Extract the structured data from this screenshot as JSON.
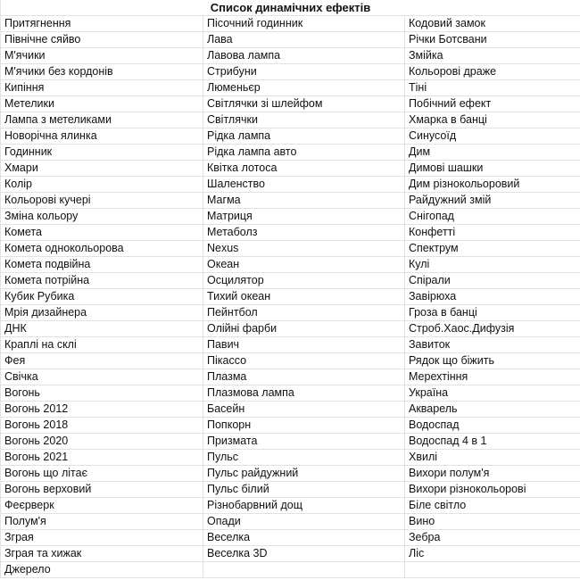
{
  "title": "Список динамічних ефектів",
  "rows": [
    [
      "Притягнення",
      "Пісочний годинник",
      "Кодовий замок"
    ],
    [
      "Північне сяйво",
      "Лава",
      "Річки Ботсвани"
    ],
    [
      "М'ячики",
      "Лавова лампа",
      "Змійка"
    ],
    [
      "М'ячики без кордонів",
      "Стрибуни",
      "Кольорові драже"
    ],
    [
      "Кипіння",
      "Люменьєр",
      "Тіні"
    ],
    [
      "Метелики",
      "Світлячки зі шлейфом",
      "Побічний ефект"
    ],
    [
      "Лампа з метеликами",
      "Світлячки",
      "Хмарка в банці"
    ],
    [
      "Новорічна ялинка",
      "Рідка лампа",
      "Синусоїд"
    ],
    [
      "Годинник",
      "Рідка лампа авто",
      "Дим"
    ],
    [
      "Хмари",
      "Квітка лотоса",
      "Димові шашки"
    ],
    [
      "Колір",
      "Шаленство",
      "Дим різнокольоровий"
    ],
    [
      "Кольорові кучері",
      "Магма",
      "Райдужний змій"
    ],
    [
      "Зміна кольору",
      "Матриця",
      "Снігопад"
    ],
    [
      "Комета",
      "Метаболз",
      "Конфетті"
    ],
    [
      "Комета однокольорова",
      "Nexus",
      "Спектрум"
    ],
    [
      "Комета подвійна",
      "Океан",
      "Кулі"
    ],
    [
      "Комета потрійна",
      "Осцилятор",
      "Спірали"
    ],
    [
      "Кубик Рубика",
      "Тихий океан",
      "Завірюха"
    ],
    [
      "Мрія дизайнера",
      "Пейнтбол",
      "Гроза в банці"
    ],
    [
      "ДНК",
      "Олійні фарби",
      "Строб.Хаос.Дифузія"
    ],
    [
      "Краплі на склі",
      "Павич",
      "Завиток"
    ],
    [
      "Фея",
      "Пікассо",
      "Рядок що біжить"
    ],
    [
      "Свічка",
      "Плазма",
      "Мерехтіння"
    ],
    [
      "Вогонь",
      "Плазмова лампа",
      "Україна"
    ],
    [
      "Вогонь 2012",
      "Басейн",
      "Акварель"
    ],
    [
      "Вогонь 2018",
      "Попкорн",
      "Водоспад"
    ],
    [
      "Вогонь 2020",
      "Призмата",
      "Водоспад 4 в 1"
    ],
    [
      "Вогонь 2021",
      "Пульс",
      "Хвилі"
    ],
    [
      "Вогонь що літає",
      "Пульс райдужний",
      "Вихори полум'я"
    ],
    [
      "Вогонь верховий",
      "Пульс білий",
      "Вихори різнокольорові"
    ],
    [
      "Феєрверк",
      "Різнобарвний дощ",
      "Біле світло"
    ],
    [
      "Полум'я",
      "Опади",
      "Вино"
    ],
    [
      "Зграя",
      "Веселка",
      "Зебра"
    ],
    [
      "Зграя та хижак",
      "Веселка 3D",
      "Ліс"
    ],
    [
      "Джерело",
      "",
      ""
    ]
  ]
}
